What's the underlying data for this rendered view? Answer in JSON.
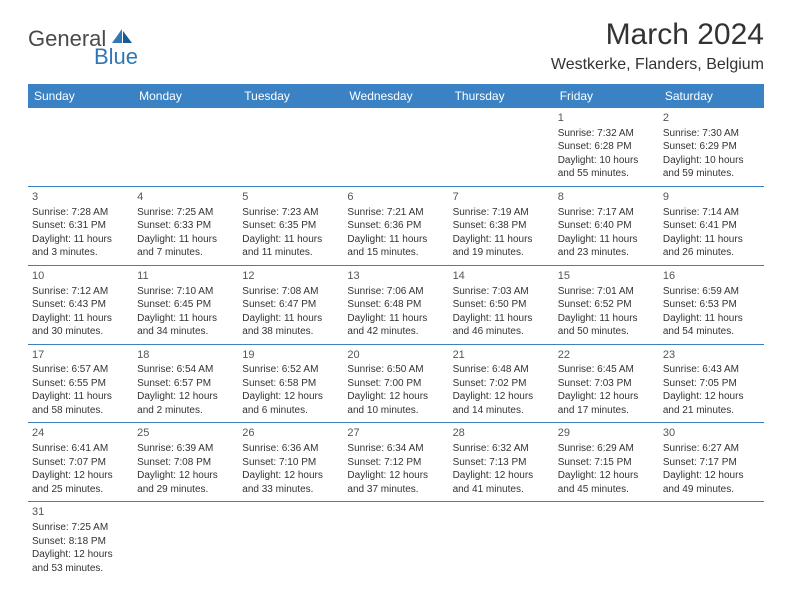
{
  "logo": {
    "main": "General",
    "sub": "Blue"
  },
  "title": "March 2024",
  "location": "Westkerke, Flanders, Belgium",
  "headerColor": "#3a82c4",
  "dayHeaders": [
    "Sunday",
    "Monday",
    "Tuesday",
    "Wednesday",
    "Thursday",
    "Friday",
    "Saturday"
  ],
  "weeks": [
    [
      null,
      null,
      null,
      null,
      null,
      {
        "n": "1",
        "sr": "Sunrise: 7:32 AM",
        "ss": "Sunset: 6:28 PM",
        "d1": "Daylight: 10 hours",
        "d2": "and 55 minutes."
      },
      {
        "n": "2",
        "sr": "Sunrise: 7:30 AM",
        "ss": "Sunset: 6:29 PM",
        "d1": "Daylight: 10 hours",
        "d2": "and 59 minutes."
      }
    ],
    [
      {
        "n": "3",
        "sr": "Sunrise: 7:28 AM",
        "ss": "Sunset: 6:31 PM",
        "d1": "Daylight: 11 hours",
        "d2": "and 3 minutes."
      },
      {
        "n": "4",
        "sr": "Sunrise: 7:25 AM",
        "ss": "Sunset: 6:33 PM",
        "d1": "Daylight: 11 hours",
        "d2": "and 7 minutes."
      },
      {
        "n": "5",
        "sr": "Sunrise: 7:23 AM",
        "ss": "Sunset: 6:35 PM",
        "d1": "Daylight: 11 hours",
        "d2": "and 11 minutes."
      },
      {
        "n": "6",
        "sr": "Sunrise: 7:21 AM",
        "ss": "Sunset: 6:36 PM",
        "d1": "Daylight: 11 hours",
        "d2": "and 15 minutes."
      },
      {
        "n": "7",
        "sr": "Sunrise: 7:19 AM",
        "ss": "Sunset: 6:38 PM",
        "d1": "Daylight: 11 hours",
        "d2": "and 19 minutes."
      },
      {
        "n": "8",
        "sr": "Sunrise: 7:17 AM",
        "ss": "Sunset: 6:40 PM",
        "d1": "Daylight: 11 hours",
        "d2": "and 23 minutes."
      },
      {
        "n": "9",
        "sr": "Sunrise: 7:14 AM",
        "ss": "Sunset: 6:41 PM",
        "d1": "Daylight: 11 hours",
        "d2": "and 26 minutes."
      }
    ],
    [
      {
        "n": "10",
        "sr": "Sunrise: 7:12 AM",
        "ss": "Sunset: 6:43 PM",
        "d1": "Daylight: 11 hours",
        "d2": "and 30 minutes."
      },
      {
        "n": "11",
        "sr": "Sunrise: 7:10 AM",
        "ss": "Sunset: 6:45 PM",
        "d1": "Daylight: 11 hours",
        "d2": "and 34 minutes."
      },
      {
        "n": "12",
        "sr": "Sunrise: 7:08 AM",
        "ss": "Sunset: 6:47 PM",
        "d1": "Daylight: 11 hours",
        "d2": "and 38 minutes."
      },
      {
        "n": "13",
        "sr": "Sunrise: 7:06 AM",
        "ss": "Sunset: 6:48 PM",
        "d1": "Daylight: 11 hours",
        "d2": "and 42 minutes."
      },
      {
        "n": "14",
        "sr": "Sunrise: 7:03 AM",
        "ss": "Sunset: 6:50 PM",
        "d1": "Daylight: 11 hours",
        "d2": "and 46 minutes."
      },
      {
        "n": "15",
        "sr": "Sunrise: 7:01 AM",
        "ss": "Sunset: 6:52 PM",
        "d1": "Daylight: 11 hours",
        "d2": "and 50 minutes."
      },
      {
        "n": "16",
        "sr": "Sunrise: 6:59 AM",
        "ss": "Sunset: 6:53 PM",
        "d1": "Daylight: 11 hours",
        "d2": "and 54 minutes."
      }
    ],
    [
      {
        "n": "17",
        "sr": "Sunrise: 6:57 AM",
        "ss": "Sunset: 6:55 PM",
        "d1": "Daylight: 11 hours",
        "d2": "and 58 minutes."
      },
      {
        "n": "18",
        "sr": "Sunrise: 6:54 AM",
        "ss": "Sunset: 6:57 PM",
        "d1": "Daylight: 12 hours",
        "d2": "and 2 minutes."
      },
      {
        "n": "19",
        "sr": "Sunrise: 6:52 AM",
        "ss": "Sunset: 6:58 PM",
        "d1": "Daylight: 12 hours",
        "d2": "and 6 minutes."
      },
      {
        "n": "20",
        "sr": "Sunrise: 6:50 AM",
        "ss": "Sunset: 7:00 PM",
        "d1": "Daylight: 12 hours",
        "d2": "and 10 minutes."
      },
      {
        "n": "21",
        "sr": "Sunrise: 6:48 AM",
        "ss": "Sunset: 7:02 PM",
        "d1": "Daylight: 12 hours",
        "d2": "and 14 minutes."
      },
      {
        "n": "22",
        "sr": "Sunrise: 6:45 AM",
        "ss": "Sunset: 7:03 PM",
        "d1": "Daylight: 12 hours",
        "d2": "and 17 minutes."
      },
      {
        "n": "23",
        "sr": "Sunrise: 6:43 AM",
        "ss": "Sunset: 7:05 PM",
        "d1": "Daylight: 12 hours",
        "d2": "and 21 minutes."
      }
    ],
    [
      {
        "n": "24",
        "sr": "Sunrise: 6:41 AM",
        "ss": "Sunset: 7:07 PM",
        "d1": "Daylight: 12 hours",
        "d2": "and 25 minutes."
      },
      {
        "n": "25",
        "sr": "Sunrise: 6:39 AM",
        "ss": "Sunset: 7:08 PM",
        "d1": "Daylight: 12 hours",
        "d2": "and 29 minutes."
      },
      {
        "n": "26",
        "sr": "Sunrise: 6:36 AM",
        "ss": "Sunset: 7:10 PM",
        "d1": "Daylight: 12 hours",
        "d2": "and 33 minutes."
      },
      {
        "n": "27",
        "sr": "Sunrise: 6:34 AM",
        "ss": "Sunset: 7:12 PM",
        "d1": "Daylight: 12 hours",
        "d2": "and 37 minutes."
      },
      {
        "n": "28",
        "sr": "Sunrise: 6:32 AM",
        "ss": "Sunset: 7:13 PM",
        "d1": "Daylight: 12 hours",
        "d2": "and 41 minutes."
      },
      {
        "n": "29",
        "sr": "Sunrise: 6:29 AM",
        "ss": "Sunset: 7:15 PM",
        "d1": "Daylight: 12 hours",
        "d2": "and 45 minutes."
      },
      {
        "n": "30",
        "sr": "Sunrise: 6:27 AM",
        "ss": "Sunset: 7:17 PM",
        "d1": "Daylight: 12 hours",
        "d2": "and 49 minutes."
      }
    ],
    [
      {
        "n": "31",
        "sr": "Sunrise: 7:25 AM",
        "ss": "Sunset: 8:18 PM",
        "d1": "Daylight: 12 hours",
        "d2": "and 53 minutes."
      },
      null,
      null,
      null,
      null,
      null,
      null
    ]
  ]
}
